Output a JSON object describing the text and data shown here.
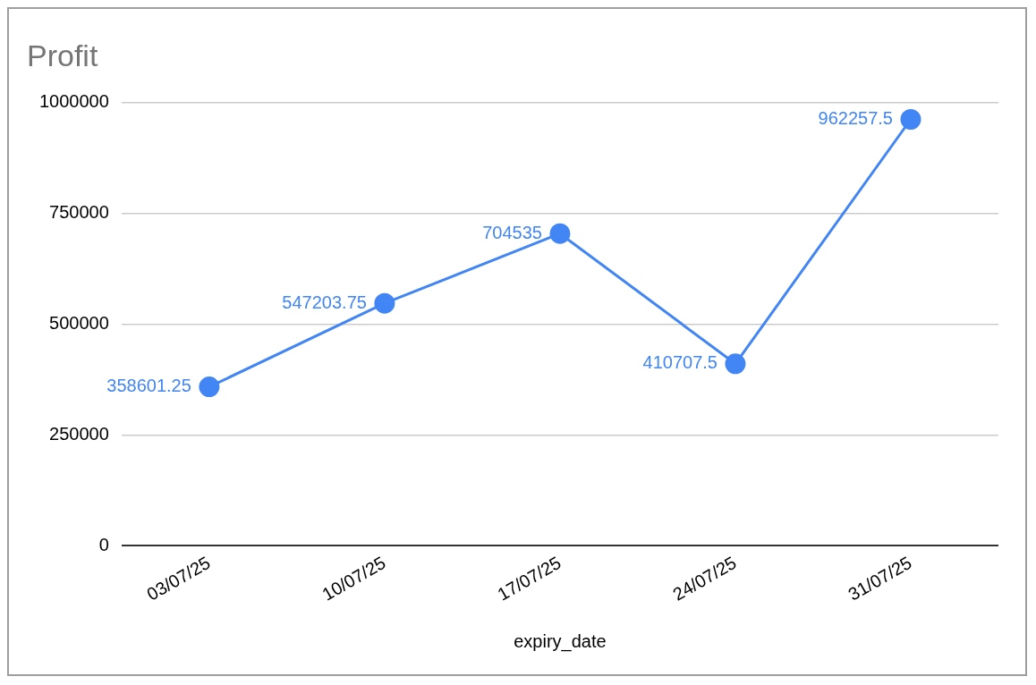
{
  "chart_data": {
    "type": "line",
    "title": "Profit",
    "xlabel": "expiry_date",
    "categories": [
      "03/07/25",
      "10/07/25",
      "17/07/25",
      "24/07/25",
      "31/07/25"
    ],
    "series": [
      {
        "color": "#4285f4",
        "values": [
          358601.25,
          547203.75,
          704535,
          410707.5,
          962257.5
        ]
      }
    ],
    "ylim": [
      0,
      1000000
    ],
    "yticks": [
      0,
      250000,
      500000,
      750000,
      1000000
    ],
    "grid": "y",
    "legend": false,
    "marker": "circle",
    "line_style": "solid",
    "data_labels": true
  }
}
